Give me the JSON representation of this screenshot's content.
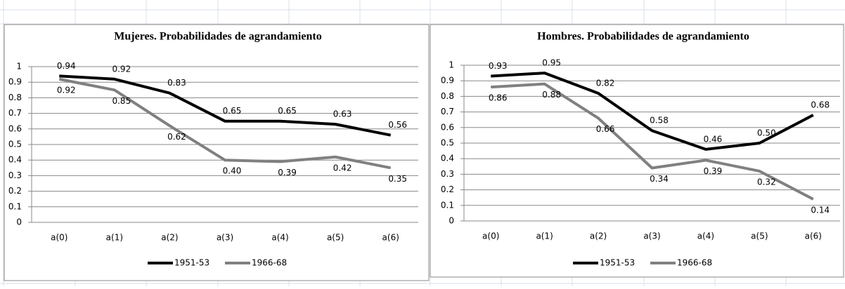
{
  "chart_data": [
    {
      "type": "line",
      "title": "Mujeres. Probabilidades de agrandamiento",
      "categories": [
        "a(0)",
        "a(1)",
        "a(2)",
        "a(3)",
        "a(4)",
        "a(5)",
        "a(6)"
      ],
      "series": [
        {
          "name": "1951-53",
          "color": "#000000",
          "values": [
            0.94,
            0.92,
            0.83,
            0.65,
            0.65,
            0.63,
            0.56
          ],
          "value_labels": [
            "0.94",
            "0.92",
            "0.83",
            "0.65",
            "0.65",
            "0.63",
            "0.56"
          ]
        },
        {
          "name": "1966-68",
          "color": "#808080",
          "values": [
            0.92,
            0.85,
            0.62,
            0.4,
            0.39,
            0.42,
            0.35
          ],
          "value_labels": [
            "0.92",
            "0.85",
            "0.62",
            "0.40",
            "0.39",
            "0.42",
            "0.35"
          ]
        }
      ],
      "ylim": [
        0,
        1
      ],
      "yticks": [
        0,
        0.1,
        0.2,
        0.3,
        0.4,
        0.5,
        0.6,
        0.7,
        0.8,
        0.9,
        1
      ],
      "grid": true,
      "legend": "bottom"
    },
    {
      "type": "line",
      "title": "Hombres. Probabilidades de agrandamiento",
      "categories": [
        "a(0)",
        "a(1)",
        "a(2)",
        "a(3)",
        "a(4)",
        "a(5)",
        "a(6)"
      ],
      "series": [
        {
          "name": "1951-53",
          "color": "#000000",
          "values": [
            0.93,
            0.95,
            0.82,
            0.58,
            0.46,
            0.5,
            0.68
          ],
          "value_labels": [
            "0.93",
            "0.95",
            "0.82",
            "0.58",
            "0.46",
            "0.50",
            "0.68"
          ]
        },
        {
          "name": "1966-68",
          "color": "#808080",
          "values": [
            0.86,
            0.88,
            0.66,
            0.34,
            0.39,
            0.32,
            0.14
          ],
          "value_labels": [
            "0.86",
            "0.88",
            "0.66",
            "0.34",
            "0.39",
            "0.32",
            "0.14"
          ]
        }
      ],
      "ylim": [
        0,
        1
      ],
      "yticks": [
        0,
        0.1,
        0.2,
        0.3,
        0.4,
        0.5,
        0.6,
        0.7,
        0.8,
        0.9,
        1
      ],
      "grid": true,
      "legend": "bottom"
    }
  ]
}
